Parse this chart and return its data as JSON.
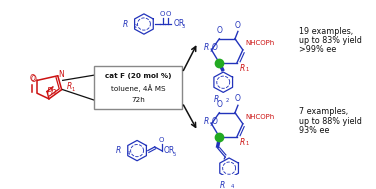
{
  "background_color": "#ffffff",
  "blue_color": "#2233bb",
  "red_color": "#cc1111",
  "green_color": "#22aa22",
  "black_color": "#111111",
  "gray_color": "#888888",
  "box_text_line1": "cat F (20 mol %)",
  "box_text_line2": "toluene, 4Å MS",
  "box_text_line3": "72h",
  "result1_line1": "19 examples,",
  "result1_line2": "up to 83% yield",
  "result1_line3": ">99% ee",
  "result2_line1": "7 examples,",
  "result2_line2": "up to 88% yield",
  "result2_line3": "93% ee",
  "figsize": [
    3.76,
    1.89
  ],
  "dpi": 100
}
